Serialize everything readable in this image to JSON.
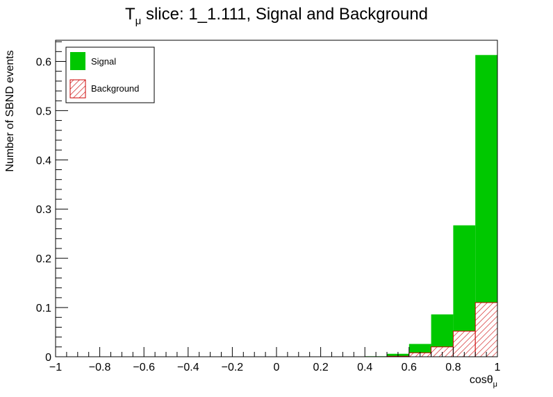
{
  "chart_data": {
    "type": "bar",
    "title_main": "T",
    "title_sub": "μ",
    "title_rest": " slice: 1_1.111, Signal and Background",
    "xlabel_main": "cosθ",
    "xlabel_sub": "μ",
    "ylabel": "Number of SBND events",
    "xlim": [
      -1,
      1
    ],
    "ylim": [
      0,
      0.643
    ],
    "xticks": [
      -1,
      -0.8,
      -0.6,
      -0.4,
      -0.2,
      0,
      0.2,
      0.4,
      0.6,
      0.8,
      1
    ],
    "xtick_labels": [
      "−1",
      "−0.8",
      "−0.6",
      "−0.4",
      "−0.2",
      "0",
      "0.2",
      "0.4",
      "0.6",
      "0.8",
      "1"
    ],
    "yticks": [
      0,
      0.1,
      0.2,
      0.3,
      0.4,
      0.5,
      0.6
    ],
    "ytick_labels": [
      "0",
      "0.1",
      "0.2",
      "0.3",
      "0.4",
      "0.5",
      "0.6"
    ],
    "stacked": true,
    "bin_edges": [
      -1.0,
      -0.9,
      -0.8,
      -0.7,
      -0.6,
      -0.5,
      -0.4,
      -0.3,
      -0.2,
      -0.1,
      0.0,
      0.1,
      0.2,
      0.3,
      0.4,
      0.5,
      0.6,
      0.7,
      0.8,
      0.9,
      1.0
    ],
    "series": [
      {
        "name": "Background",
        "color": "#cc0000",
        "pattern": "hatched",
        "values": [
          0,
          0,
          0,
          0,
          0,
          0,
          0,
          0,
          0,
          0,
          0,
          0,
          0,
          0,
          0,
          0.001,
          0.008,
          0.02,
          0.052,
          0.11
        ]
      },
      {
        "name": "Signal",
        "color": "#00c800",
        "pattern": "solid",
        "values": [
          0,
          0,
          0,
          0,
          0,
          0,
          0,
          0,
          0,
          0,
          0,
          0,
          0,
          0,
          0.001,
          0.005,
          0.018,
          0.066,
          0.215,
          0.503
        ]
      }
    ],
    "legend": {
      "placement": "top-left",
      "entries": [
        "Signal",
        "Background"
      ]
    }
  }
}
